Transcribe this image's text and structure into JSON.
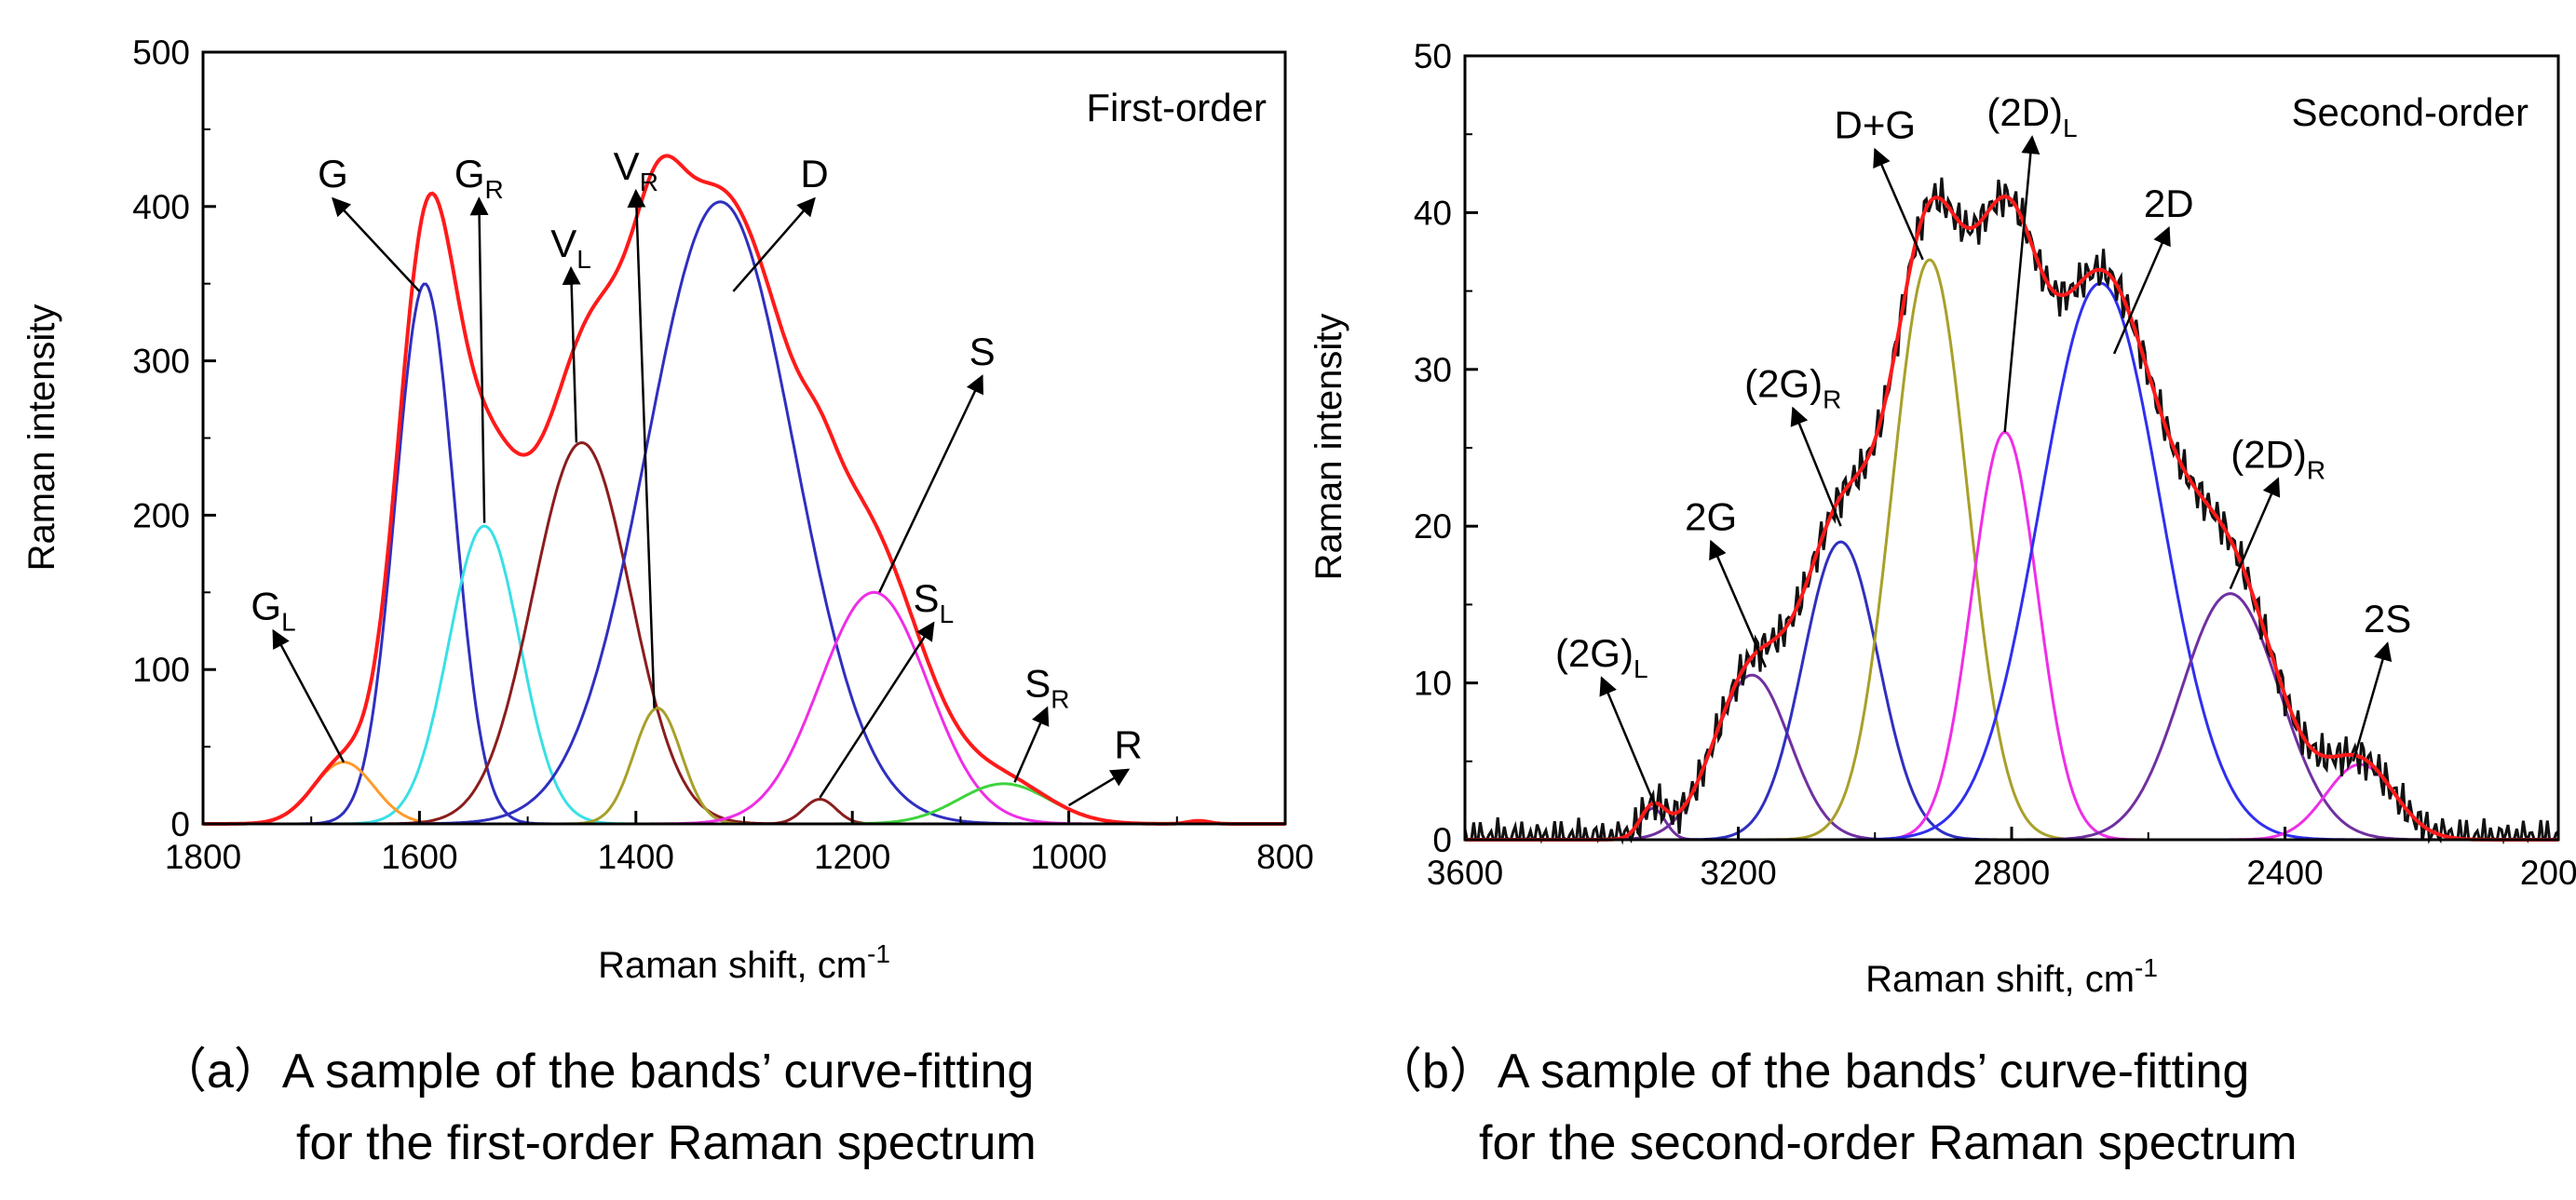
{
  "chart_data": [
    {
      "type": "line",
      "panel": "a",
      "title": "First-order",
      "xlabel": "Raman shift, cm",
      "xlabel_sup": "-1",
      "ylabel": "Raman intensity",
      "xlim": [
        1800,
        800
      ],
      "ylim": [
        0,
        500
      ],
      "xticks": [
        1800,
        1600,
        1400,
        1200,
        1000,
        800
      ],
      "yticks": [
        0,
        100,
        200,
        300,
        400,
        500
      ],
      "caption_prefix": "（a）",
      "caption_lines": [
        "A sample of the bands’ curve-fitting",
        "for the first-order Raman spectrum"
      ],
      "bands": [
        {
          "name": "G",
          "sub": "",
          "center": 1595,
          "amp": 350,
          "sigma": 27,
          "color": "#2f2fbf"
        },
        {
          "name": "G",
          "sub": "R",
          "center": 1540,
          "amp": 193,
          "sigma": 33,
          "color": "#39e0e6"
        },
        {
          "name": "G",
          "sub": "L",
          "center": 1670,
          "amp": 40,
          "sigma": 28,
          "color": "#ff9a2a"
        },
        {
          "name": "V",
          "sub": "L",
          "center": 1450,
          "amp": 247,
          "sigma": 45,
          "color": "#8b1d1d"
        },
        {
          "name": "V",
          "sub": "R",
          "center": 1380,
          "amp": 75,
          "sigma": 22,
          "color": "#a8a02a"
        },
        {
          "name": "D",
          "sub": "",
          "center": 1322,
          "amp": 403,
          "sigma": 68,
          "color": "#2f2fbf"
        },
        {
          "name": "S",
          "sub": "",
          "center": 1180,
          "amp": 150,
          "sigma": 50,
          "color": "#ee2ee6"
        },
        {
          "name": "S",
          "sub": "L",
          "center": 1230,
          "amp": 16,
          "sigma": 15,
          "color": "#8b1d1d"
        },
        {
          "name": "S",
          "sub": "R",
          "center": 1060,
          "amp": 26,
          "sigma": 42,
          "color": "#3cd43c"
        },
        {
          "name": "R",
          "sub": "",
          "center": 880,
          "amp": 2,
          "sigma": 10,
          "color": "#8b1d1d"
        }
      ],
      "labels": [
        {
          "name": "G",
          "sub": "",
          "x": 1680,
          "y": 410,
          "tx": 1600,
          "ty": 345
        },
        {
          "name": "G",
          "sub": "R",
          "x": 1545,
          "y": 410,
          "tx": 1540,
          "ty": 195
        },
        {
          "name": "V",
          "sub": "R",
          "x": 1400,
          "y": 415,
          "tx": 1383,
          "ty": 75
        },
        {
          "name": "V",
          "sub": "L",
          "x": 1460,
          "y": 365,
          "tx": 1455,
          "ty": 247
        },
        {
          "name": "D",
          "sub": "",
          "x": 1235,
          "y": 410,
          "tx": 1310,
          "ty": 345
        },
        {
          "name": "S",
          "sub": "",
          "x": 1080,
          "y": 295,
          "tx": 1175,
          "ty": 150
        },
        {
          "name": "G",
          "sub": "L",
          "x": 1735,
          "y": 130,
          "tx": 1670,
          "ty": 40
        },
        {
          "name": "S",
          "sub": "L",
          "x": 1125,
          "y": 135,
          "tx": 1230,
          "ty": 17
        },
        {
          "name": "S",
          "sub": "R",
          "x": 1020,
          "y": 80,
          "tx": 1050,
          "ty": 27
        },
        {
          "name": "R",
          "sub": "",
          "x": 945,
          "y": 40,
          "tx": 1000,
          "ty": 12
        }
      ]
    },
    {
      "type": "line",
      "panel": "b",
      "title": "Second-order",
      "xlabel": "Raman shift, cm",
      "xlabel_sup": "-1",
      "ylabel": "Raman intensity",
      "xlim": [
        3600,
        2000
      ],
      "ylim": [
        0,
        50
      ],
      "xticks": [
        3600,
        3200,
        2800,
        2400,
        2000
      ],
      "yticks": [
        0,
        10,
        20,
        30,
        40,
        50
      ],
      "caption_prefix": "（b）",
      "caption_lines": [
        "A sample of the bands’ curve-fitting",
        "for the second-order Raman spectrum"
      ],
      "bands": [
        {
          "name": "(2G)",
          "sub": "L",
          "center": 3325,
          "amp": 2,
          "sigma": 18,
          "color": "#7030a0"
        },
        {
          "name": "2G",
          "sub": "",
          "center": 3180,
          "amp": 10.5,
          "sigma": 55,
          "color": "#7030a0"
        },
        {
          "name": "(2G)",
          "sub": "R",
          "center": 3050,
          "amp": 19,
          "sigma": 55,
          "color": "#2f2fbf"
        },
        {
          "name": "D+G",
          "sub": "",
          "center": 2920,
          "amp": 37,
          "sigma": 55,
          "color": "#a8a02a"
        },
        {
          "name": "(2D)",
          "sub": "L",
          "center": 2810,
          "amp": 26,
          "sigma": 48,
          "color": "#ee2ee6"
        },
        {
          "name": "2D",
          "sub": "",
          "center": 2670,
          "amp": 35.5,
          "sigma": 88,
          "color": "#2f2fef"
        },
        {
          "name": "(2D)",
          "sub": "R",
          "center": 2480,
          "amp": 15.7,
          "sigma": 72,
          "color": "#7030a0"
        },
        {
          "name": "2S",
          "sub": "",
          "center": 2290,
          "amp": 4.8,
          "sigma": 50,
          "color": "#ee2ee6"
        }
      ],
      "labels": [
        {
          "name": "D+G",
          "sub": "",
          "x": 3000,
          "y": 44.5,
          "tx": 2930,
          "ty": 37
        },
        {
          "name": "(2D)",
          "sub": "L",
          "x": 2770,
          "y": 45.3,
          "tx": 2810,
          "ty": 26
        },
        {
          "name": "2D",
          "sub": "",
          "x": 2570,
          "y": 39.5,
          "tx": 2650,
          "ty": 31
        },
        {
          "name": "(2G)",
          "sub": "R",
          "x": 3120,
          "y": 28,
          "tx": 3050,
          "ty": 20
        },
        {
          "name": "2G",
          "sub": "",
          "x": 3240,
          "y": 19.5,
          "tx": 3160,
          "ty": 11
        },
        {
          "name": "(2D)",
          "sub": "R",
          "x": 2410,
          "y": 23.5,
          "tx": 2480,
          "ty": 16
        },
        {
          "name": "(2G)",
          "sub": "L",
          "x": 3400,
          "y": 10.8,
          "tx": 3320,
          "ty": 2
        },
        {
          "name": "2S",
          "sub": "",
          "x": 2250,
          "y": 13,
          "tx": 2300,
          "ty": 5
        }
      ]
    }
  ]
}
